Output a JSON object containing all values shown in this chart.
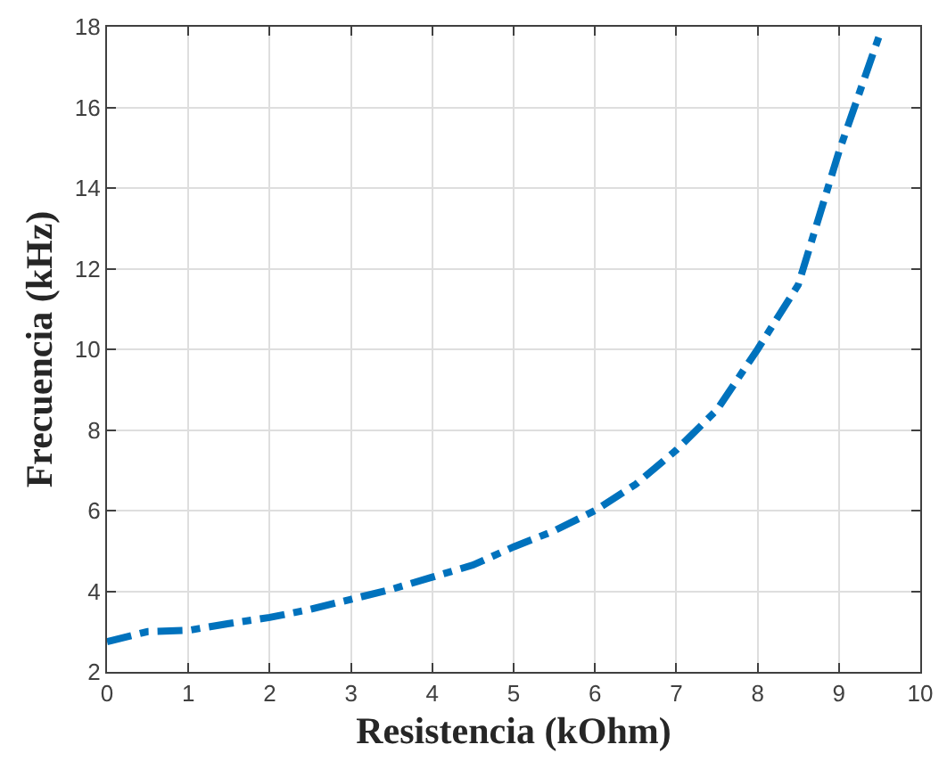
{
  "chart_data": {
    "type": "line",
    "xlabel": "Resistencia (kOhm)",
    "ylabel": "Frecuencia (kHz)",
    "x": [
      0,
      0.5,
      1,
      1.5,
      2,
      2.5,
      3,
      3.5,
      4,
      4.5,
      5,
      5.5,
      6,
      6.5,
      7,
      7.5,
      8,
      8.5,
      9,
      9.5
    ],
    "series": [
      {
        "color": "#0072bd",
        "values": [
          2.75,
          3.0,
          3.03,
          3.2,
          3.35,
          3.55,
          3.8,
          4.05,
          4.35,
          4.65,
          5.1,
          5.5,
          6.0,
          6.65,
          7.5,
          8.5,
          10.0,
          11.6,
          14.9,
          17.8
        ]
      }
    ],
    "xlim": [
      0,
      10
    ],
    "xticks": [
      0,
      1,
      2,
      3,
      4,
      5,
      6,
      7,
      8,
      9,
      10
    ],
    "ylim": [
      2,
      18
    ],
    "yticks": [
      2,
      4,
      6,
      8,
      10,
      12,
      14,
      16,
      18
    ],
    "grid": true,
    "marker": "none",
    "line_style": "dashed"
  }
}
